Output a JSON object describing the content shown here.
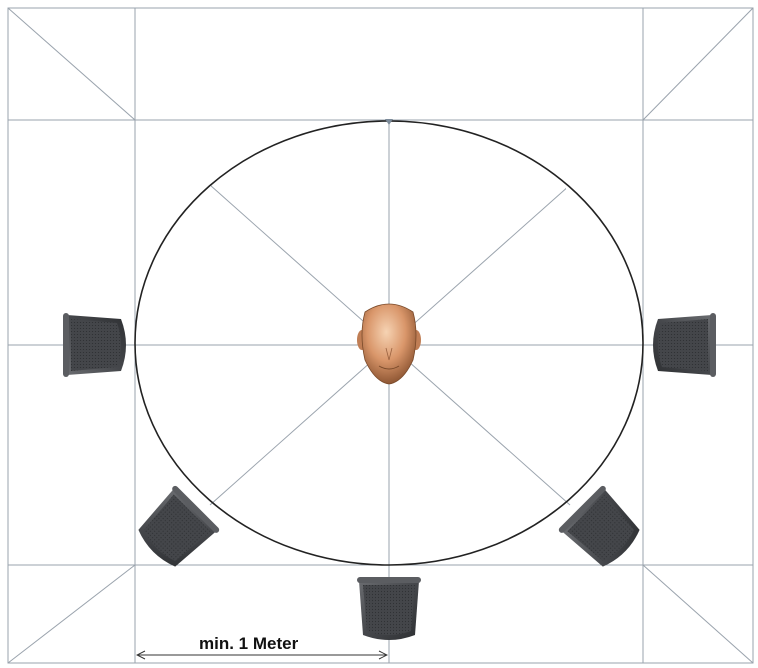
{
  "diagram": {
    "type": "surround-speaker-placement",
    "dimension_label": "min. 1 Meter",
    "listener": {
      "icon": "listener-head-icon"
    },
    "speakers": [
      {
        "name": "speaker-left",
        "icon": "speaker-icon"
      },
      {
        "name": "speaker-right",
        "icon": "speaker-icon"
      },
      {
        "name": "speaker-rear-left",
        "icon": "speaker-icon"
      },
      {
        "name": "speaker-rear-right",
        "icon": "speaker-icon"
      },
      {
        "name": "speaker-rear-center",
        "icon": "speaker-icon"
      }
    ],
    "colors": {
      "grid_line": "#9aa3ad",
      "circle": "#222222",
      "speaker_body": "#4a4c50",
      "speaker_mesh": "#3a3c40",
      "head_skin": "#d9966a"
    }
  }
}
